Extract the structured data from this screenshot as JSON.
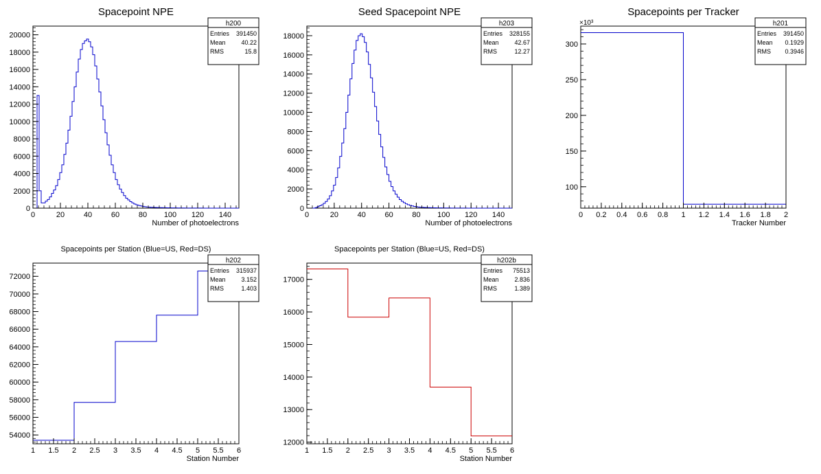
{
  "chart_data": [
    {
      "id": "panel-1",
      "type": "histogram-step",
      "title": "Spacepoint NPE",
      "xlabel": "Number of photoelectrons",
      "ylabel": "",
      "xlim": [
        0,
        150
      ],
      "ylim": [
        0,
        21000
      ],
      "x_ticks": [
        0,
        20,
        40,
        60,
        80,
        100,
        120,
        140
      ],
      "x_tick_labels": [
        "0",
        "20",
        "40",
        "60",
        "80",
        "100",
        "120",
        "140"
      ],
      "y_ticks": [
        0,
        2000,
        4000,
        6000,
        8000,
        10000,
        12000,
        14000,
        16000,
        18000,
        20000
      ],
      "y_tick_labels": [
        "0",
        "2000",
        "4000",
        "6000",
        "8000",
        "10000",
        "12000",
        "14000",
        "16000",
        "18000",
        "20000"
      ],
      "line_color": "#0000cc",
      "bin_width": 1.5,
      "values": [
        0,
        0,
        13000,
        2000,
        600,
        600,
        800,
        1000,
        1300,
        1700,
        2100,
        2600,
        3300,
        4100,
        5000,
        6200,
        7500,
        9000,
        10600,
        12300,
        14000,
        15700,
        17200,
        18300,
        19000,
        19300,
        19500,
        19200,
        18600,
        17700,
        16400,
        14900,
        13400,
        11800,
        10200,
        8700,
        7300,
        6100,
        5000,
        4100,
        3300,
        2700,
        2200,
        1800,
        1450,
        1150,
        950,
        750,
        600,
        480,
        390,
        320,
        260,
        210,
        170,
        140,
        120,
        100,
        90,
        80,
        70,
        60,
        55,
        50,
        45,
        40,
        35,
        30,
        28,
        25,
        22,
        20,
        18,
        16,
        14,
        12,
        11,
        10,
        9,
        8,
        7,
        6,
        6,
        5,
        5,
        4,
        4,
        3,
        3,
        3,
        2,
        2,
        2,
        2,
        1,
        1,
        1,
        1,
        1,
        1
      ],
      "stats": {
        "name": "h200",
        "entries": "391450",
        "mean": "40.22",
        "rms": "15.8"
      }
    },
    {
      "id": "panel-2",
      "type": "histogram-step",
      "title": "Seed Spacepoint NPE",
      "xlabel": "Number of photoelectrons",
      "ylabel": "",
      "xlim": [
        0,
        150
      ],
      "ylim": [
        0,
        19000
      ],
      "x_ticks": [
        0,
        20,
        40,
        60,
        80,
        100,
        120,
        140
      ],
      "x_tick_labels": [
        "0",
        "20",
        "40",
        "60",
        "80",
        "100",
        "120",
        "140"
      ],
      "y_ticks": [
        0,
        2000,
        4000,
        6000,
        8000,
        10000,
        12000,
        14000,
        16000,
        18000
      ],
      "y_tick_labels": [
        "0",
        "2000",
        "4000",
        "6000",
        "8000",
        "10000",
        "12000",
        "14000",
        "16000",
        "18000"
      ],
      "line_color": "#0000cc",
      "bin_width": 1.5,
      "values": [
        0,
        0,
        0,
        0,
        50,
        150,
        250,
        350,
        500,
        700,
        950,
        1300,
        1800,
        2400,
        3200,
        4200,
        5400,
        6800,
        8300,
        10000,
        11800,
        13500,
        15100,
        16500,
        17500,
        18000,
        18200,
        17900,
        17300,
        16300,
        15000,
        13600,
        12100,
        10600,
        9100,
        7700,
        6400,
        5300,
        4300,
        3500,
        2800,
        2250,
        1800,
        1450,
        1150,
        900,
        720,
        570,
        450,
        360,
        290,
        230,
        180,
        150,
        120,
        100,
        85,
        70,
        60,
        50,
        45,
        40,
        35,
        30,
        27,
        24,
        21,
        18,
        16,
        14,
        12,
        10,
        9,
        8,
        7,
        6,
        5,
        5,
        4,
        4,
        3,
        3,
        3,
        2,
        2,
        2,
        2,
        1,
        1,
        1,
        1,
        1,
        1,
        1,
        1,
        1,
        1,
        1,
        1,
        1
      ],
      "stats": {
        "name": "h203",
        "entries": "328155",
        "mean": "42.67",
        "rms": "12.27"
      }
    },
    {
      "id": "panel-3",
      "type": "histogram-step",
      "title": "Spacepoints per Tracker",
      "xlabel": "Tracker Number",
      "ylabel": "",
      "exponent_label": "×10³",
      "xlim": [
        0,
        2
      ],
      "ylim": [
        70,
        325
      ],
      "x_ticks": [
        0,
        0.2,
        0.4,
        0.6,
        0.8,
        1,
        1.2,
        1.4,
        1.6,
        1.8,
        2
      ],
      "x_tick_labels": [
        "0",
        "0.2",
        "0.4",
        "0.6",
        "0.8",
        "1",
        "1.2",
        "1.4",
        "1.6",
        "1.8",
        "2"
      ],
      "y_ticks": [
        100,
        150,
        200,
        250,
        300
      ],
      "y_tick_labels": [
        "100",
        "150",
        "200",
        "250",
        "300"
      ],
      "line_color": "#0000cc",
      "bin_width": 1,
      "values": [
        315.9,
        75.5
      ],
      "stats": {
        "name": "h201",
        "entries": "391450",
        "mean": "0.1929",
        "rms": "0.3946"
      }
    },
    {
      "id": "panel-4",
      "type": "histogram-step",
      "title": "Spacepoints per Station (Blue=US, Red=DS)",
      "xlabel": "Station Number",
      "ylabel": "",
      "xlim": [
        1,
        6
      ],
      "ylim": [
        53000,
        73500
      ],
      "x_ticks": [
        1,
        1.5,
        2,
        2.5,
        3,
        3.5,
        4,
        4.5,
        5,
        5.5,
        6
      ],
      "x_tick_labels": [
        "1",
        "1.5",
        "2",
        "2.5",
        "3",
        "3.5",
        "4",
        "4.5",
        "5",
        "5.5",
        "6"
      ],
      "y_ticks": [
        54000,
        56000,
        58000,
        60000,
        62000,
        64000,
        66000,
        68000,
        70000,
        72000
      ],
      "y_tick_labels": [
        "54000",
        "56000",
        "58000",
        "60000",
        "62000",
        "64000",
        "66000",
        "68000",
        "70000",
        "72000"
      ],
      "line_color": "#0000cc",
      "bin_width": 1,
      "values": [
        53400,
        57700,
        64600,
        67600,
        72600
      ],
      "stats": {
        "name": "h202",
        "entries": "315937",
        "mean": "3.152",
        "rms": "1.403"
      }
    },
    {
      "id": "panel-5",
      "type": "histogram-step",
      "title": "Spacepoints per Station (Blue=US, Red=DS)",
      "xlabel": "Station Number",
      "ylabel": "",
      "xlim": [
        1,
        6
      ],
      "ylim": [
        11950,
        17500
      ],
      "x_ticks": [
        1,
        1.5,
        2,
        2.5,
        3,
        3.5,
        4,
        4.5,
        5,
        5.5,
        6
      ],
      "x_tick_labels": [
        "1",
        "1.5",
        "2",
        "2.5",
        "3",
        "3.5",
        "4",
        "4.5",
        "5",
        "5.5",
        "6"
      ],
      "y_ticks": [
        12000,
        13000,
        14000,
        15000,
        16000,
        17000
      ],
      "y_tick_labels": [
        "12000",
        "13000",
        "14000",
        "15000",
        "16000",
        "17000"
      ],
      "line_color": "#cc0000",
      "bin_width": 1,
      "values": [
        17320,
        15840,
        16430,
        13690,
        12190
      ],
      "stats": {
        "name": "h202b",
        "entries": "75513",
        "mean": "2.836",
        "rms": "1.389"
      }
    }
  ],
  "stats_labels": {
    "entries": "Entries",
    "mean": "Mean",
    "rms": "RMS"
  }
}
